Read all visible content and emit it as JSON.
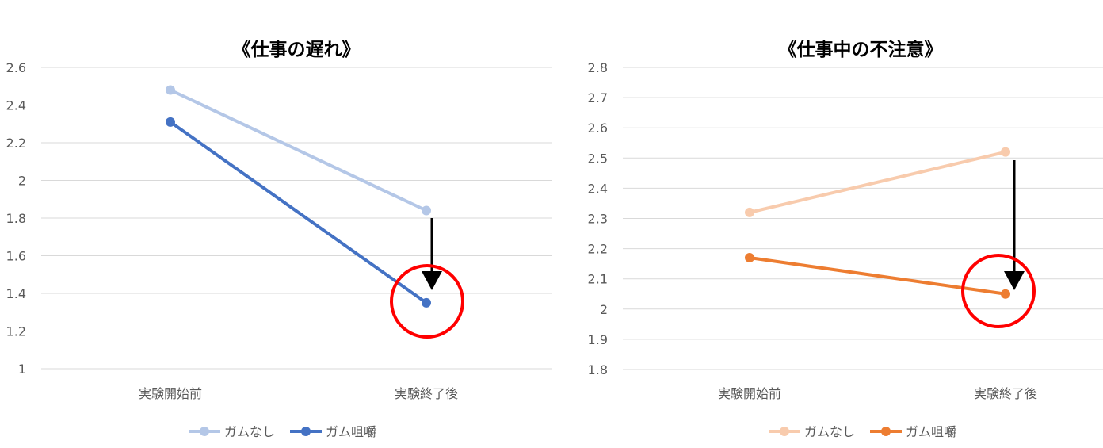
{
  "chart_data": [
    {
      "type": "line",
      "title": "《仕事の遅れ》",
      "categories": [
        "実験開始前",
        "実験終了後"
      ],
      "y_ticks": [
        "2.6",
        "2.4",
        "2.2",
        "2",
        "1.8",
        "1.6",
        "1.4",
        "1.2",
        "1"
      ],
      "ylim": [
        1,
        2.6
      ],
      "grid": true,
      "legend_position": "bottom",
      "series": [
        {
          "name": "ガムなし",
          "values": [
            2.48,
            1.84
          ],
          "color": "#b4c7e7"
        },
        {
          "name": "ガム咀嚼",
          "values": [
            2.31,
            1.35
          ],
          "color": "#4472c4"
        }
      ],
      "annotations": {
        "arrow": "down-arrow",
        "highlight": "red-circle",
        "highlight_color": "#ff0000"
      }
    },
    {
      "type": "line",
      "title": "《仕事中の不注意》",
      "categories": [
        "実験開始前",
        "実験終了後"
      ],
      "y_ticks": [
        "2.8",
        "2.7",
        "2.6",
        "2.5",
        "2.4",
        "2.3",
        "2.2",
        "2.1",
        "2",
        "1.9",
        "1.8"
      ],
      "ylim": [
        1.8,
        2.8
      ],
      "grid": true,
      "legend_position": "bottom",
      "series": [
        {
          "name": "ガムなし",
          "values": [
            2.32,
            2.52
          ],
          "color": "#f8cbad"
        },
        {
          "name": "ガム咀嚼",
          "values": [
            2.17,
            2.05
          ],
          "color": "#ed7d31"
        }
      ],
      "annotations": {
        "arrow": "down-arrow",
        "highlight": "red-circle",
        "highlight_color": "#ff0000"
      }
    }
  ]
}
